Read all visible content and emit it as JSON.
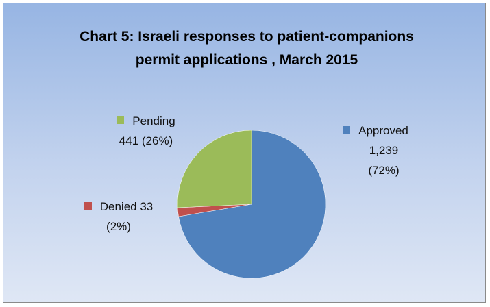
{
  "chart_data": {
    "type": "pie",
    "title": "Chart 5: Israeli responses to patient-companions permit applications , March 2015",
    "categories": [
      "Approved",
      "Denied",
      "Pending"
    ],
    "values": [
      1239,
      33,
      441
    ],
    "value_labels": [
      "1,239 (72%)",
      "33 (2%)",
      "441 (26%)"
    ],
    "colors": [
      "#4f81bd",
      "#c0504d",
      "#9bbb59"
    ]
  }
}
